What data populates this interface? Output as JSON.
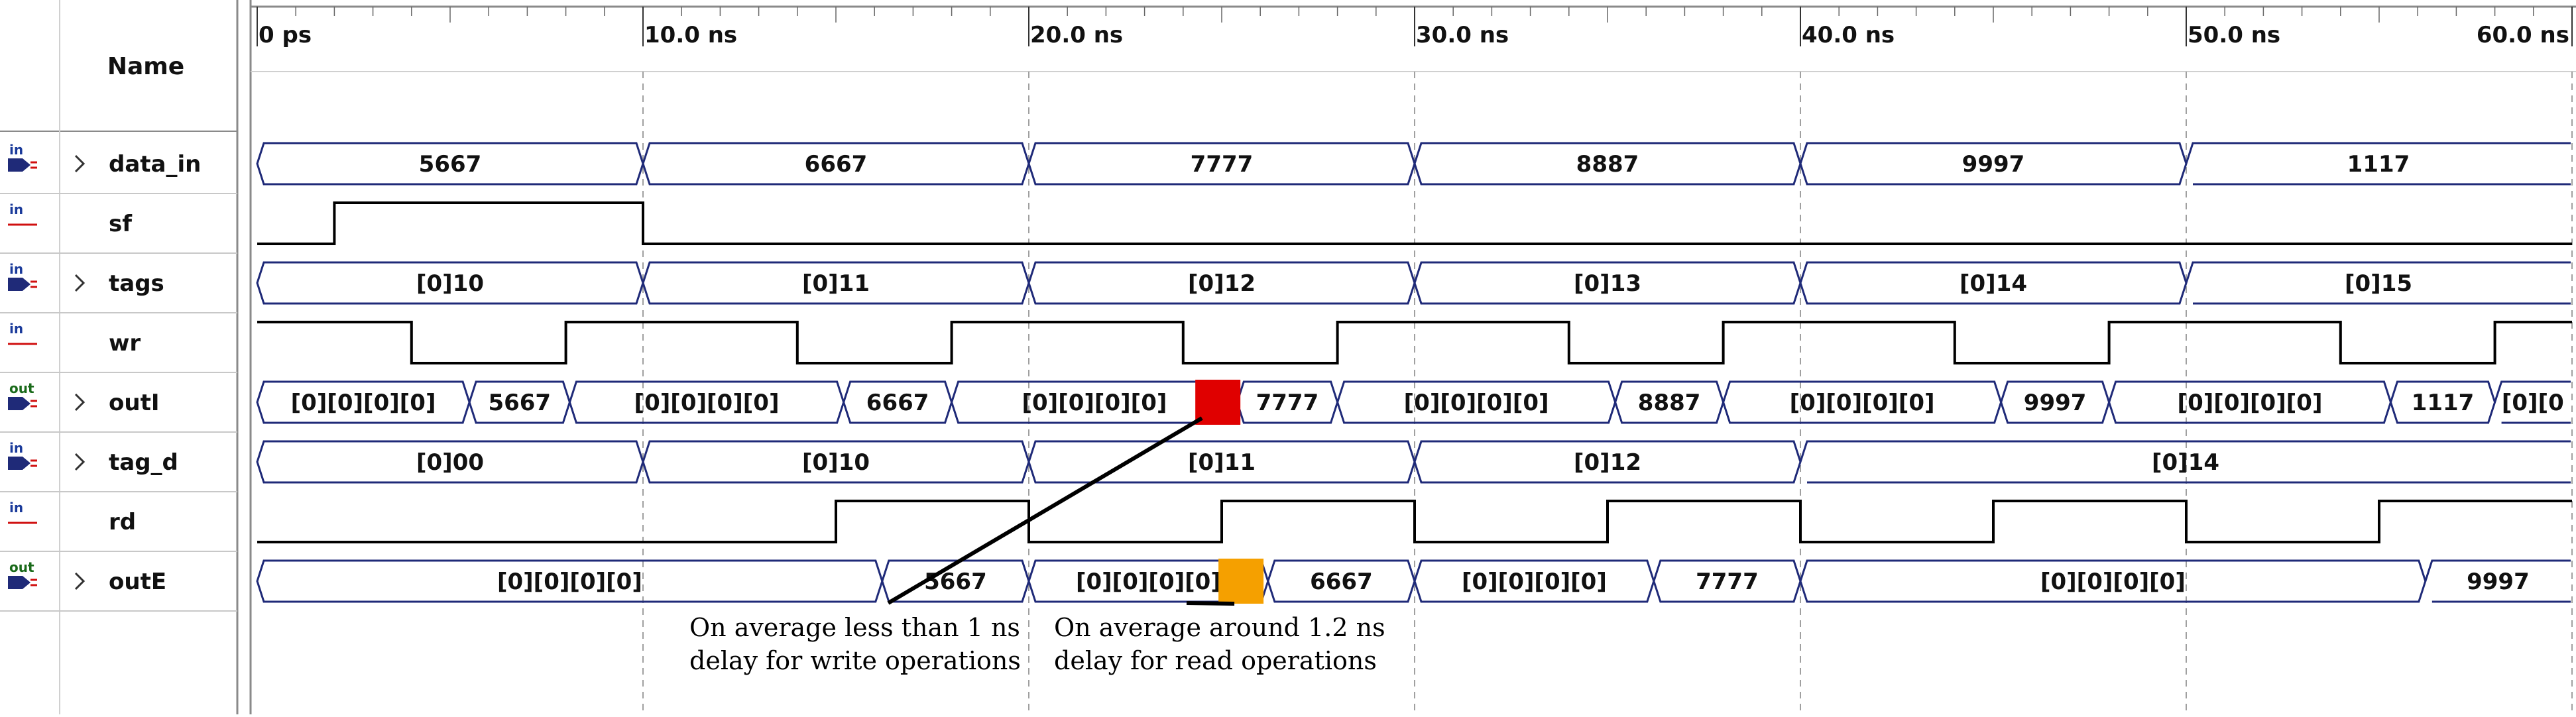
{
  "header": {
    "name_label": "Name"
  },
  "timeline": {
    "ticks": [
      "0 ps",
      "10.0 ns",
      "20.0 ns",
      "30.0 ns",
      "40.0 ns",
      "50.0 ns",
      "60.0 ns"
    ]
  },
  "signals": [
    {
      "name": "data_in",
      "type": "bus",
      "icon": "input-bus-icon",
      "expandable": true,
      "segments": [
        {
          "start": 0,
          "end": 10,
          "label": "5667"
        },
        {
          "start": 10,
          "end": 20,
          "label": "6667"
        },
        {
          "start": 20,
          "end": 30,
          "label": "7777"
        },
        {
          "start": 30,
          "end": 40,
          "label": "8887"
        },
        {
          "start": 40,
          "end": 50,
          "label": "9997"
        },
        {
          "start": 50,
          "end": 60,
          "label": "1117"
        }
      ]
    },
    {
      "name": "sf",
      "type": "bit",
      "icon": "input-bit-icon",
      "expandable": false,
      "transitions": [
        {
          "t": 0,
          "v": 0
        },
        {
          "t": 2,
          "v": 1
        },
        {
          "t": 10,
          "v": 0
        }
      ]
    },
    {
      "name": "tags",
      "type": "bus",
      "icon": "input-bus-icon",
      "expandable": true,
      "segments": [
        {
          "start": 0,
          "end": 10,
          "label": "[0]10"
        },
        {
          "start": 10,
          "end": 20,
          "label": "[0]11"
        },
        {
          "start": 20,
          "end": 30,
          "label": "[0]12"
        },
        {
          "start": 30,
          "end": 40,
          "label": "[0]13"
        },
        {
          "start": 40,
          "end": 50,
          "label": "[0]14"
        },
        {
          "start": 50,
          "end": 60,
          "label": "[0]15"
        }
      ]
    },
    {
      "name": "wr",
      "type": "bit",
      "icon": "input-bit-icon",
      "expandable": false,
      "transitions": [
        {
          "t": 0,
          "v": 1
        },
        {
          "t": 4,
          "v": 0
        },
        {
          "t": 8,
          "v": 1
        },
        {
          "t": 14,
          "v": 0
        },
        {
          "t": 18,
          "v": 1
        },
        {
          "t": 24,
          "v": 0
        },
        {
          "t": 28,
          "v": 1
        },
        {
          "t": 34,
          "v": 0
        },
        {
          "t": 38,
          "v": 1
        },
        {
          "t": 44,
          "v": 0
        },
        {
          "t": 48,
          "v": 1
        },
        {
          "t": 54,
          "v": 0
        },
        {
          "t": 58,
          "v": 1
        }
      ]
    },
    {
      "name": "outI",
      "type": "bus",
      "icon": "output-bus-icon",
      "expandable": true,
      "segments": [
        {
          "start": 0,
          "end": 5.5,
          "label": "[0][0][0][0]"
        },
        {
          "start": 5.5,
          "end": 8.1,
          "label": "5667"
        },
        {
          "start": 8.1,
          "end": 15.2,
          "label": "[0][0][0][0]"
        },
        {
          "start": 15.2,
          "end": 18,
          "label": "6667"
        },
        {
          "start": 18,
          "end": 25.4,
          "label": "[0][0][0][0]"
        },
        {
          "start": 25.4,
          "end": 28,
          "label": "7777"
        },
        {
          "start": 28,
          "end": 35.2,
          "label": "[0][0][0][0]"
        },
        {
          "start": 35.2,
          "end": 38,
          "label": "8887"
        },
        {
          "start": 38,
          "end": 45.2,
          "label": "[0][0][0][0]"
        },
        {
          "start": 45.2,
          "end": 48,
          "label": "9997"
        },
        {
          "start": 48,
          "end": 55.3,
          "label": "[0][0][0][0]"
        },
        {
          "start": 55.3,
          "end": 58,
          "label": "1117"
        },
        {
          "start": 58,
          "end": 60,
          "label": "[0][0"
        }
      ]
    },
    {
      "name": "tag_d",
      "type": "bus",
      "icon": "input-bus-icon",
      "expandable": true,
      "segments": [
        {
          "start": 0,
          "end": 10,
          "label": "[0]00"
        },
        {
          "start": 10,
          "end": 20,
          "label": "[0]10"
        },
        {
          "start": 20,
          "end": 30,
          "label": "[0]11"
        },
        {
          "start": 30,
          "end": 40,
          "label": "[0]12"
        },
        {
          "start": 40,
          "end": 60,
          "label": "[0]14"
        }
      ]
    },
    {
      "name": "rd",
      "type": "bit",
      "icon": "input-bit-icon",
      "expandable": false,
      "transitions": [
        {
          "t": 0,
          "v": 0
        },
        {
          "t": 15,
          "v": 1
        },
        {
          "t": 20,
          "v": 0
        },
        {
          "t": 25,
          "v": 1
        },
        {
          "t": 30,
          "v": 0
        },
        {
          "t": 35,
          "v": 1
        },
        {
          "t": 40,
          "v": 0
        },
        {
          "t": 45,
          "v": 1
        },
        {
          "t": 50,
          "v": 0
        },
        {
          "t": 55,
          "v": 1
        }
      ]
    },
    {
      "name": "outE",
      "type": "bus",
      "icon": "output-bus-icon",
      "expandable": true,
      "segments": [
        {
          "start": 0,
          "end": 16.2,
          "label": "[0][0][0][0]"
        },
        {
          "start": 16.2,
          "end": 20,
          "label": "5667"
        },
        {
          "start": 20,
          "end": 26.2,
          "label": "[0][0][0][0]"
        },
        {
          "start": 26.2,
          "end": 30,
          "label": "6667"
        },
        {
          "start": 30,
          "end": 36.2,
          "label": "[0][0][0][0]"
        },
        {
          "start": 36.2,
          "end": 40,
          "label": "7777"
        },
        {
          "start": 40,
          "end": 56.2,
          "label": "[0][0][0][0]"
        },
        {
          "start": 56.2,
          "end": 60,
          "label": "9997"
        }
      ]
    }
  ],
  "annotations": [
    {
      "name": "write-delay-annotation",
      "lines": [
        "On average less than 1 ns",
        "delay for write operations"
      ],
      "marker_color": "#e00000",
      "marker_time": 24.9,
      "marker_signal": "outI"
    },
    {
      "name": "read-delay-annotation",
      "lines": [
        "On average around 1.2 ns",
        "delay for read operations"
      ],
      "marker_color": "#f5a000",
      "marker_time": 25.5,
      "marker_signal": "outE"
    }
  ],
  "colors": {
    "wave": "#1f2a78",
    "grid": "#a0a0a0",
    "panel_border": "#8a8a8a"
  }
}
